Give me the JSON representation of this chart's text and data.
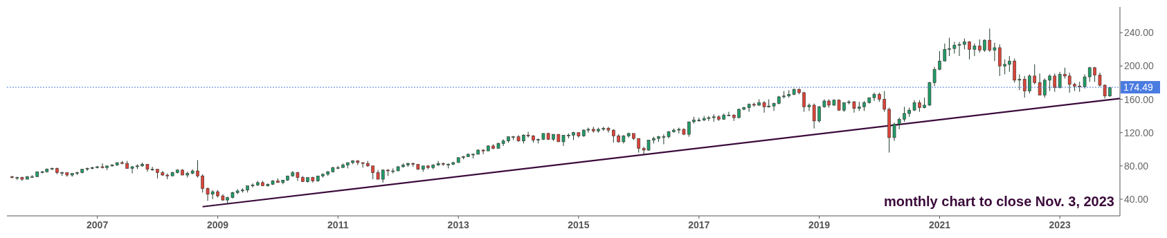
{
  "chart_data": {
    "type": "candlestick",
    "x": [
      "2005-08",
      "2005-09",
      "2005-10",
      "2005-11",
      "2005-12",
      "2006-01",
      "2006-02",
      "2006-03",
      "2006-04",
      "2006-05",
      "2006-06",
      "2006-07",
      "2006-08",
      "2006-09",
      "2006-10",
      "2006-11",
      "2006-12",
      "2007-01",
      "2007-02",
      "2007-03",
      "2007-04",
      "2007-05",
      "2007-06",
      "2007-07",
      "2007-08",
      "2007-09",
      "2007-10",
      "2007-11",
      "2007-12",
      "2008-01",
      "2008-02",
      "2008-03",
      "2008-04",
      "2008-05",
      "2008-06",
      "2008-07",
      "2008-08",
      "2008-09",
      "2008-10",
      "2008-11",
      "2008-12",
      "2009-01",
      "2009-02",
      "2009-03",
      "2009-04",
      "2009-05",
      "2009-06",
      "2009-07",
      "2009-08",
      "2009-09",
      "2009-10",
      "2009-11",
      "2009-12",
      "2010-01",
      "2010-02",
      "2010-03",
      "2010-04",
      "2010-05",
      "2010-06",
      "2010-07",
      "2010-08",
      "2010-09",
      "2010-10",
      "2010-11",
      "2010-12",
      "2011-01",
      "2011-02",
      "2011-03",
      "2011-04",
      "2011-05",
      "2011-06",
      "2011-07",
      "2011-08",
      "2011-09",
      "2011-10",
      "2011-11",
      "2011-12",
      "2012-01",
      "2012-02",
      "2012-03",
      "2012-04",
      "2012-05",
      "2012-06",
      "2012-07",
      "2012-08",
      "2012-09",
      "2012-10",
      "2012-11",
      "2012-12",
      "2013-01",
      "2013-02",
      "2013-03",
      "2013-04",
      "2013-05",
      "2013-06",
      "2013-07",
      "2013-08",
      "2013-09",
      "2013-10",
      "2013-11",
      "2013-12",
      "2014-01",
      "2014-02",
      "2014-03",
      "2014-04",
      "2014-05",
      "2014-06",
      "2014-07",
      "2014-08",
      "2014-09",
      "2014-10",
      "2014-11",
      "2014-12",
      "2015-01",
      "2015-02",
      "2015-03",
      "2015-04",
      "2015-05",
      "2015-06",
      "2015-07",
      "2015-08",
      "2015-09",
      "2015-10",
      "2015-11",
      "2015-12",
      "2016-01",
      "2016-02",
      "2016-03",
      "2016-04",
      "2016-05",
      "2016-06",
      "2016-07",
      "2016-08",
      "2016-09",
      "2016-10",
      "2016-11",
      "2016-12",
      "2017-01",
      "2017-02",
      "2017-03",
      "2017-04",
      "2017-05",
      "2017-06",
      "2017-07",
      "2017-08",
      "2017-09",
      "2017-10",
      "2017-11",
      "2017-12",
      "2018-01",
      "2018-02",
      "2018-03",
      "2018-04",
      "2018-05",
      "2018-06",
      "2018-07",
      "2018-08",
      "2018-09",
      "2018-10",
      "2018-11",
      "2018-12",
      "2019-01",
      "2019-02",
      "2019-03",
      "2019-04",
      "2019-05",
      "2019-06",
      "2019-07",
      "2019-08",
      "2019-09",
      "2019-10",
      "2019-11",
      "2019-12",
      "2020-01",
      "2020-02",
      "2020-03",
      "2020-04",
      "2020-05",
      "2020-06",
      "2020-07",
      "2020-08",
      "2020-09",
      "2020-10",
      "2020-11",
      "2020-12",
      "2021-01",
      "2021-02",
      "2021-03",
      "2021-04",
      "2021-05",
      "2021-06",
      "2021-07",
      "2021-08",
      "2021-09",
      "2021-10",
      "2021-11",
      "2021-12",
      "2022-01",
      "2022-02",
      "2022-03",
      "2022-04",
      "2022-05",
      "2022-06",
      "2022-07",
      "2022-08",
      "2022-09",
      "2022-10",
      "2022-11",
      "2022-12",
      "2023-01",
      "2023-02",
      "2023-03",
      "2023-04",
      "2023-05",
      "2023-06",
      "2023-07",
      "2023-08",
      "2023-09",
      "2023-10",
      "2023-11"
    ],
    "ohlc": [
      [
        67,
        68,
        65,
        66
      ],
      [
        66,
        67,
        63,
        66
      ],
      [
        66,
        67,
        62,
        64
      ],
      [
        64,
        68,
        64,
        67
      ],
      [
        67,
        69,
        66,
        67
      ],
      [
        67,
        73,
        67,
        73
      ],
      [
        73,
        74,
        71,
        73
      ],
      [
        73,
        77,
        72,
        76
      ],
      [
        76,
        78,
        75,
        77
      ],
      [
        77,
        78,
        70,
        72
      ],
      [
        72,
        73,
        68,
        72
      ],
      [
        72,
        72,
        67,
        69
      ],
      [
        69,
        71,
        67,
        71
      ],
      [
        71,
        73,
        69,
        72
      ],
      [
        72,
        76,
        71,
        76
      ],
      [
        76,
        78,
        74,
        77
      ],
      [
        77,
        79,
        76,
        78
      ],
      [
        78,
        80,
        77,
        79
      ],
      [
        79,
        83,
        77,
        78
      ],
      [
        78,
        80,
        75,
        80
      ],
      [
        80,
        82,
        79,
        81
      ],
      [
        81,
        84,
        80,
        84
      ],
      [
        84,
        86,
        82,
        83
      ],
      [
        83,
        86,
        77,
        77
      ],
      [
        77,
        80,
        71,
        79
      ],
      [
        79,
        82,
        76,
        80
      ],
      [
        80,
        84,
        79,
        82
      ],
      [
        82,
        82,
        73,
        76
      ],
      [
        76,
        79,
        74,
        76
      ],
      [
        76,
        76,
        65,
        72
      ],
      [
        72,
        74,
        68,
        69
      ],
      [
        69,
        71,
        64,
        68
      ],
      [
        68,
        73,
        68,
        72
      ],
      [
        72,
        76,
        71,
        75
      ],
      [
        75,
        76,
        69,
        69
      ],
      [
        69,
        73,
        66,
        71
      ],
      [
        71,
        76,
        70,
        74
      ],
      [
        74,
        87,
        66,
        68
      ],
      [
        68,
        70,
        48,
        53
      ],
      [
        53,
        54,
        38,
        46
      ],
      [
        46,
        51,
        40,
        49
      ],
      [
        49,
        51,
        42,
        44
      ],
      [
        44,
        46,
        38,
        39
      ],
      [
        39,
        43,
        34,
        42
      ],
      [
        42,
        49,
        41,
        48
      ],
      [
        48,
        52,
        46,
        50
      ],
      [
        50,
        53,
        48,
        51
      ],
      [
        51,
        56,
        48,
        56
      ],
      [
        56,
        59,
        54,
        57
      ],
      [
        57,
        62,
        56,
        60
      ],
      [
        60,
        62,
        56,
        56
      ],
      [
        56,
        59,
        55,
        58
      ],
      [
        58,
        63,
        57,
        62
      ],
      [
        62,
        65,
        60,
        60
      ],
      [
        60,
        63,
        58,
        63
      ],
      [
        63,
        68,
        62,
        68
      ],
      [
        68,
        74,
        67,
        72
      ],
      [
        72,
        73,
        62,
        66
      ],
      [
        66,
        68,
        61,
        61
      ],
      [
        61,
        66,
        60,
        66
      ],
      [
        66,
        67,
        60,
        62
      ],
      [
        62,
        68,
        61,
        68
      ],
      [
        68,
        71,
        66,
        70
      ],
      [
        70,
        74,
        68,
        73
      ],
      [
        73,
        79,
        72,
        78
      ],
      [
        78,
        80,
        76,
        78
      ],
      [
        78,
        83,
        78,
        81
      ],
      [
        81,
        84,
        77,
        84
      ],
      [
        84,
        87,
        82,
        86
      ],
      [
        86,
        87,
        81,
        84
      ],
      [
        84,
        84,
        78,
        83
      ],
      [
        83,
        86,
        79,
        80
      ],
      [
        80,
        80,
        64,
        72
      ],
      [
        72,
        75,
        64,
        64
      ],
      [
        64,
        76,
        60,
        75
      ],
      [
        75,
        76,
        68,
        74
      ],
      [
        74,
        77,
        71,
        74
      ],
      [
        74,
        80,
        74,
        79
      ],
      [
        79,
        83,
        78,
        81
      ],
      [
        81,
        84,
        79,
        83
      ],
      [
        83,
        84,
        79,
        82
      ],
      [
        82,
        82,
        75,
        76
      ],
      [
        76,
        80,
        73,
        80
      ],
      [
        80,
        81,
        76,
        78
      ],
      [
        78,
        82,
        76,
        81
      ],
      [
        81,
        86,
        80,
        83
      ],
      [
        83,
        84,
        80,
        82
      ],
      [
        82,
        83,
        77,
        82
      ],
      [
        82,
        85,
        81,
        84
      ],
      [
        84,
        90,
        84,
        90
      ],
      [
        90,
        92,
        88,
        91
      ],
      [
        91,
        95,
        91,
        94
      ],
      [
        94,
        95,
        89,
        94
      ],
      [
        94,
        100,
        94,
        99
      ],
      [
        99,
        100,
        94,
        98
      ],
      [
        98,
        105,
        98,
        104
      ],
      [
        104,
        106,
        100,
        101
      ],
      [
        101,
        108,
        101,
        107
      ],
      [
        107,
        112,
        104,
        110
      ],
      [
        110,
        115,
        108,
        115
      ],
      [
        115,
        116,
        111,
        115
      ],
      [
        115,
        117,
        109,
        110
      ],
      [
        110,
        118,
        107,
        117
      ],
      [
        117,
        121,
        114,
        116
      ],
      [
        116,
        117,
        108,
        111
      ],
      [
        111,
        113,
        107,
        112
      ],
      [
        112,
        119,
        111,
        119
      ],
      [
        119,
        120,
        111,
        112
      ],
      [
        112,
        118,
        110,
        118
      ],
      [
        118,
        118,
        109,
        109
      ],
      [
        109,
        117,
        104,
        117
      ],
      [
        117,
        119,
        113,
        117
      ],
      [
        117,
        121,
        111,
        120
      ],
      [
        120,
        120,
        114,
        116
      ],
      [
        116,
        124,
        115,
        123
      ],
      [
        123,
        126,
        120,
        124
      ],
      [
        124,
        127,
        120,
        122
      ],
      [
        122,
        126,
        120,
        124
      ],
      [
        124,
        127,
        122,
        125
      ],
      [
        125,
        127,
        120,
        123
      ],
      [
        123,
        124,
        108,
        116
      ],
      [
        116,
        118,
        108,
        109
      ],
      [
        109,
        117,
        107,
        116
      ],
      [
        116,
        120,
        114,
        119
      ],
      [
        119,
        119,
        111,
        113
      ],
      [
        113,
        113,
        96,
        101
      ],
      [
        101,
        103,
        94,
        99
      ],
      [
        99,
        111,
        98,
        111
      ],
      [
        111,
        115,
        107,
        113
      ],
      [
        113,
        116,
        109,
        115
      ],
      [
        115,
        118,
        106,
        115
      ],
      [
        115,
        122,
        113,
        121
      ],
      [
        121,
        125,
        120,
        123
      ],
      [
        123,
        126,
        119,
        124
      ],
      [
        124,
        125,
        117,
        118
      ],
      [
        118,
        133,
        115,
        133
      ],
      [
        133,
        139,
        131,
        135
      ],
      [
        135,
        138,
        133,
        135
      ],
      [
        135,
        140,
        134,
        137
      ],
      [
        137,
        140,
        134,
        138
      ],
      [
        138,
        142,
        133,
        139
      ],
      [
        139,
        141,
        134,
        136
      ],
      [
        136,
        143,
        136,
        141
      ],
      [
        141,
        145,
        140,
        141
      ],
      [
        141,
        142,
        134,
        138
      ],
      [
        138,
        149,
        137,
        148
      ],
      [
        148,
        151,
        147,
        150
      ],
      [
        150,
        155,
        145,
        154
      ],
      [
        154,
        156,
        151,
        153
      ],
      [
        153,
        160,
        152,
        156
      ],
      [
        156,
        158,
        144,
        151
      ],
      [
        151,
        160,
        150,
        152
      ],
      [
        152,
        156,
        146,
        155
      ],
      [
        155,
        164,
        154,
        163
      ],
      [
        163,
        170,
        161,
        164
      ],
      [
        164,
        171,
        162,
        166
      ],
      [
        166,
        173,
        165,
        172
      ],
      [
        172,
        173,
        166,
        168
      ],
      [
        168,
        169,
        145,
        151
      ],
      [
        151,
        155,
        146,
        153
      ],
      [
        153,
        155,
        125,
        134
      ],
      [
        134,
        152,
        132,
        151
      ],
      [
        151,
        160,
        150,
        158
      ],
      [
        158,
        160,
        150,
        153
      ],
      [
        153,
        160,
        152,
        159
      ],
      [
        159,
        160,
        146,
        147
      ],
      [
        147,
        156,
        145,
        156
      ],
      [
        156,
        159,
        154,
        157
      ],
      [
        157,
        158,
        144,
        149
      ],
      [
        149,
        157,
        146,
        151
      ],
      [
        151,
        158,
        146,
        156
      ],
      [
        156,
        162,
        155,
        162
      ],
      [
        162,
        168,
        158,
        166
      ],
      [
        166,
        168,
        157,
        160
      ],
      [
        160,
        170,
        145,
        148
      ],
      [
        148,
        150,
        96,
        114
      ],
      [
        114,
        132,
        110,
        130
      ],
      [
        130,
        138,
        124,
        136
      ],
      [
        136,
        151,
        133,
        143
      ],
      [
        143,
        150,
        139,
        147
      ],
      [
        147,
        159,
        146,
        156
      ],
      [
        156,
        159,
        145,
        150
      ],
      [
        150,
        162,
        149,
        153
      ],
      [
        153,
        181,
        152,
        180
      ],
      [
        180,
        199,
        176,
        196
      ],
      [
        196,
        218,
        195,
        206
      ],
      [
        206,
        227,
        206,
        220
      ],
      [
        220,
        234,
        212,
        221
      ],
      [
        221,
        229,
        215,
        225
      ],
      [
        225,
        229,
        212,
        226
      ],
      [
        226,
        233,
        220,
        229
      ],
      [
        229,
        230,
        208,
        220
      ],
      [
        220,
        227,
        212,
        224
      ],
      [
        224,
        232,
        216,
        219
      ],
      [
        219,
        232,
        217,
        231
      ],
      [
        231,
        245,
        217,
        219
      ],
      [
        219,
        228,
        206,
        222
      ],
      [
        222,
        226,
        188,
        200
      ],
      [
        200,
        208,
        190,
        202
      ],
      [
        202,
        212,
        193,
        206
      ],
      [
        206,
        209,
        180,
        183
      ],
      [
        183,
        190,
        171,
        184
      ],
      [
        184,
        188,
        162,
        170
      ],
      [
        170,
        190,
        167,
        188
      ],
      [
        188,
        202,
        178,
        180
      ],
      [
        180,
        191,
        165,
        165
      ],
      [
        165,
        185,
        162,
        183
      ],
      [
        183,
        190,
        170,
        188
      ],
      [
        188,
        191,
        169,
        174
      ],
      [
        174,
        193,
        173,
        190
      ],
      [
        190,
        198,
        185,
        188
      ],
      [
        188,
        192,
        168,
        178
      ],
      [
        178,
        180,
        170,
        176
      ],
      [
        176,
        181,
        169,
        175
      ],
      [
        175,
        190,
        173,
        187
      ],
      [
        187,
        199,
        181,
        198
      ],
      [
        198,
        199,
        181,
        189
      ],
      [
        189,
        192,
        175,
        177
      ],
      [
        177,
        178,
        161,
        164
      ],
      [
        164,
        175,
        163,
        174
      ]
    ],
    "colors": [
      "#d9463b",
      "#1f9d68",
      "#d9463b",
      "#1f9d68",
      "#1f9d68",
      "#1f9d68",
      "#1f9d68",
      "#1f9d68",
      "#1f9d68",
      "#d9463b",
      "#1f9d68",
      "#d9463b",
      "#1f9d68",
      "#1f9d68",
      "#1f9d68",
      "#1f9d68",
      "#1f9d68",
      "#1f9d68",
      "#d9463b",
      "#1f9d68",
      "#1f9d68",
      "#1f9d68",
      "#d9463b",
      "#d9463b",
      "#1f9d68",
      "#1f9d68",
      "#1f9d68",
      "#d9463b",
      "#1f9d68",
      "#d9463b",
      "#d9463b",
      "#d9463b",
      "#1f9d68",
      "#1f9d68",
      "#d9463b",
      "#1f9d68",
      "#1f9d68",
      "#d9463b",
      "#d9463b",
      "#d9463b",
      "#1f9d68",
      "#d9463b",
      "#d9463b",
      "#1f9d68",
      "#1f9d68",
      "#1f9d68",
      "#1f9d68",
      "#1f9d68",
      "#1f9d68",
      "#1f9d68",
      "#d9463b",
      "#1f9d68",
      "#1f9d68",
      "#d9463b",
      "#1f9d68",
      "#1f9d68",
      "#1f9d68",
      "#d9463b",
      "#d9463b",
      "#1f9d68",
      "#d9463b",
      "#1f9d68",
      "#1f9d68",
      "#1f9d68",
      "#1f9d68",
      "#1f9d68",
      "#1f9d68",
      "#1f9d68",
      "#1f9d68",
      "#d9463b",
      "#d9463b",
      "#d9463b",
      "#d9463b",
      "#d9463b",
      "#1f9d68",
      "#d9463b",
      "#1f9d68",
      "#1f9d68",
      "#1f9d68",
      "#1f9d68",
      "#d9463b",
      "#d9463b",
      "#1f9d68",
      "#d9463b",
      "#1f9d68",
      "#1f9d68",
      "#d9463b",
      "#1f9d68",
      "#1f9d68",
      "#1f9d68",
      "#1f9d68",
      "#1f9d68",
      "#1f9d68",
      "#1f9d68",
      "#d9463b",
      "#1f9d68",
      "#d9463b",
      "#1f9d68",
      "#1f9d68",
      "#1f9d68",
      "#1f9d68",
      "#d9463b",
      "#1f9d68",
      "#d9463b",
      "#d9463b",
      "#1f9d68",
      "#1f9d68",
      "#d9463b",
      "#1f9d68",
      "#d9463b",
      "#1f9d68",
      "#1f9d68",
      "#1f9d68",
      "#d9463b",
      "#1f9d68",
      "#1f9d68",
      "#d9463b",
      "#1f9d68",
      "#1f9d68",
      "#d9463b",
      "#d9463b",
      "#d9463b",
      "#1f9d68",
      "#1f9d68",
      "#d9463b",
      "#d9463b",
      "#d9463b",
      "#1f9d68",
      "#1f9d68",
      "#1f9d68",
      "#1f9d68",
      "#1f9d68",
      "#1f9d68",
      "#1f9d68",
      "#d9463b",
      "#1f9d68",
      "#1f9d68",
      "#1f9d68",
      "#1f9d68",
      "#1f9d68",
      "#1f9d68",
      "#d9463b",
      "#1f9d68",
      "#1f9d68",
      "#d9463b",
      "#1f9d68",
      "#1f9d68",
      "#1f9d68",
      "#d9463b",
      "#1f9d68",
      "#d9463b",
      "#1f9d68",
      "#1f9d68",
      "#1f9d68",
      "#1f9d68",
      "#1f9d68",
      "#1f9d68",
      "#d9463b",
      "#d9463b",
      "#1f9d68",
      "#d9463b",
      "#1f9d68",
      "#1f9d68",
      "#d9463b",
      "#1f9d68",
      "#d9463b",
      "#1f9d68",
      "#1f9d68",
      "#d9463b",
      "#1f9d68",
      "#1f9d68",
      "#1f9d68",
      "#1f9d68",
      "#d9463b",
      "#d9463b",
      "#d9463b",
      "#1f9d68",
      "#1f9d68",
      "#1f9d68",
      "#1f9d68",
      "#1f9d68",
      "#d9463b",
      "#1f9d68",
      "#1f9d68",
      "#1f9d68",
      "#1f9d68",
      "#1f9d68",
      "#1f9d68",
      "#1f9d68",
      "#1f9d68",
      "#1f9d68",
      "#d9463b",
      "#1f9d68",
      "#d9463b",
      "#1f9d68",
      "#d9463b",
      "#1f9d68",
      "#d9463b",
      "#1f9d68",
      "#1f9d68",
      "#d9463b",
      "#1f9d68",
      "#d9463b",
      "#1f9d68",
      "#d9463b",
      "#d9463b",
      "#1f9d68",
      "#1f9d68",
      "#d9463b",
      "#1f9d68",
      "#d9463b",
      "#d9463b",
      "#d9463b",
      "#d9463b",
      "#1f9d68",
      "#1f9d68",
      "#d9463b",
      "#d9463b",
      "#d9463b",
      "#1f9d68"
    ],
    "series": [
      {
        "type": "line",
        "x": [
          "2008-10",
          "2024-01"
        ],
        "values": [
          31,
          161
        ],
        "color": "#3a0a3a"
      }
    ],
    "xlim": [
      "2005-07",
      "2024-01"
    ],
    "xticks": [
      "2007",
      "2009",
      "2011",
      "2013",
      "2015",
      "2017",
      "2019",
      "2021",
      "2023"
    ],
    "ylim": [
      20,
      271
    ],
    "yticks": [
      {
        "value": 40,
        "label": "40.00"
      },
      {
        "value": 80,
        "label": "80.00"
      },
      {
        "value": 120,
        "label": "120.00"
      },
      {
        "value": 160,
        "label": "160.00"
      },
      {
        "value": 200,
        "label": "200.00"
      },
      {
        "value": 240,
        "label": "240.00"
      }
    ],
    "ref_lines": [
      {
        "axis": "y",
        "value": 174.49,
        "label": "174.49",
        "color": "#4a7be0",
        "line_style": "dotted"
      }
    ],
    "annotations": [
      "monthly chart to close Nov. 3, 2023"
    ],
    "grid": false
  }
}
